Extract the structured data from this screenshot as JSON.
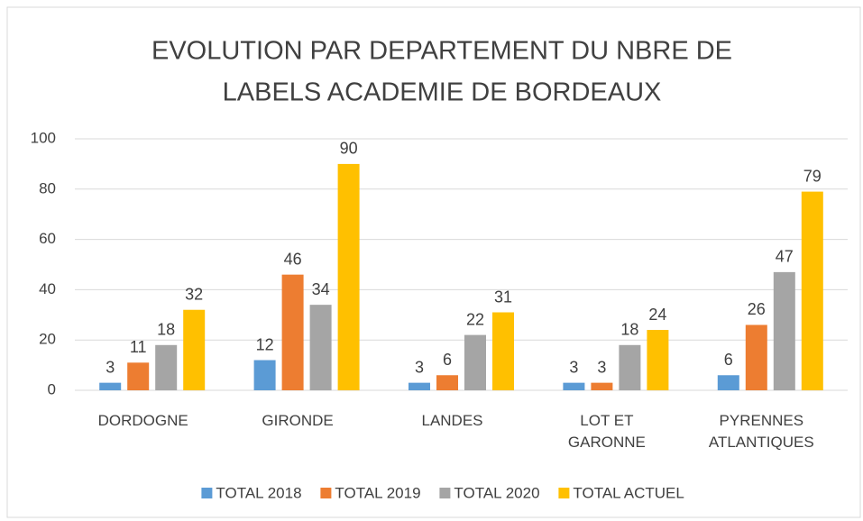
{
  "chart_data": {
    "type": "bar",
    "title": [
      "EVOLUTION PAR DEPARTEMENT DU NBRE DE",
      "LABELS  ACADEMIE DE BORDEAUX"
    ],
    "categories": [
      "DORDOGNE",
      "GIRONDE",
      "LANDES",
      "LOT ET GARONNE",
      "PYRENNES ATLANTIQUES"
    ],
    "series": [
      {
        "name": "TOTAL 2018",
        "color": "#5b9bd5",
        "values": [
          3,
          12,
          3,
          3,
          6
        ]
      },
      {
        "name": "TOTAL 2019",
        "color": "#ed7d31",
        "values": [
          11,
          46,
          6,
          3,
          26
        ]
      },
      {
        "name": "TOTAL 2020",
        "color": "#a5a5a5",
        "values": [
          18,
          34,
          22,
          18,
          47
        ]
      },
      {
        "name": "TOTAL ACTUEL",
        "color": "#ffc000",
        "values": [
          32,
          90,
          31,
          24,
          79
        ]
      }
    ],
    "ylim": [
      0,
      100
    ],
    "yticks": [
      0,
      20,
      40,
      60,
      80,
      100
    ],
    "grid": true,
    "legend": "bottom"
  }
}
